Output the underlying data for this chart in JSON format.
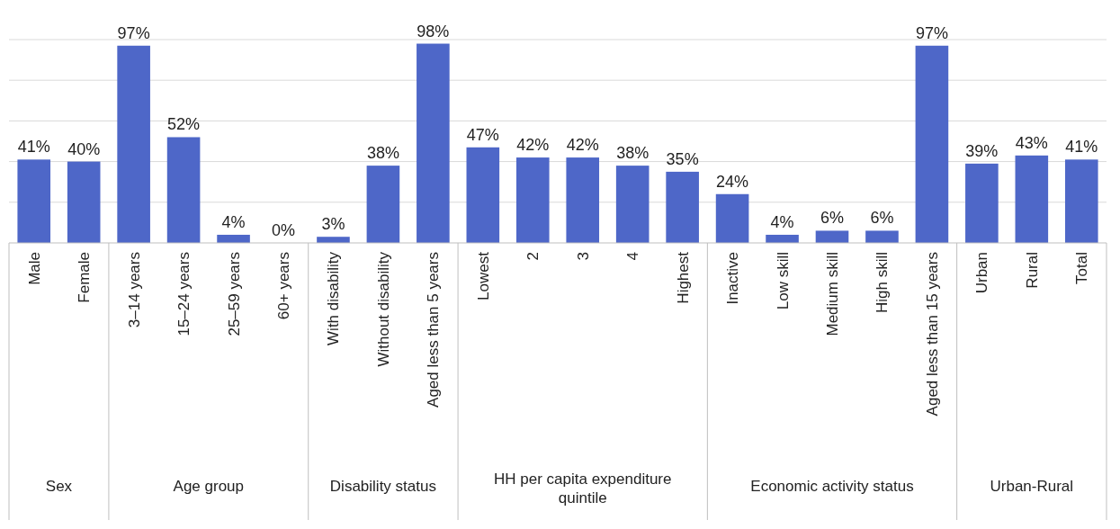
{
  "chart_data": {
    "type": "bar",
    "categories": [
      "Male",
      "Female",
      "3–14 years",
      "15–24 years",
      "25–59 years",
      "60+ years",
      "With disability",
      "Without disability",
      "Aged less than 5 years",
      "Lowest",
      "2",
      "3",
      "4",
      "Highest",
      "Inactive",
      "Low skill",
      "Medium skill",
      "High skill",
      "Aged less than 15 years",
      "Urban",
      "Rural",
      "Total"
    ],
    "values": [
      41,
      40,
      97,
      52,
      4,
      0,
      3,
      38,
      98,
      47,
      42,
      42,
      38,
      35,
      24,
      4,
      6,
      6,
      97,
      39,
      43,
      41
    ],
    "value_labels": [
      "41%",
      "40%",
      "97%",
      "52%",
      "4%",
      "0%",
      "3%",
      "38%",
      "98%",
      "47%",
      "42%",
      "42%",
      "38%",
      "35%",
      "24%",
      "4%",
      "6%",
      "6%",
      "97%",
      "39%",
      "43%",
      "41%"
    ],
    "color": "#4e67c8",
    "ylim": [
      0,
      100
    ],
    "yticks": [
      {
        "value": 0,
        "label": null
      },
      {
        "value": 20,
        "label": null
      },
      {
        "value": 40,
        "label": null
      },
      {
        "value": 60,
        "label": null
      },
      {
        "value": 80,
        "label": null
      },
      {
        "value": 100,
        "label": null
      }
    ],
    "tick_labels": "x",
    "grid": "y",
    "annotations": [
      "Sex",
      "Age group",
      "Disability status",
      "HH per capita expenditure quintile",
      "Economic activity status",
      "Urban-Rural"
    ]
  }
}
